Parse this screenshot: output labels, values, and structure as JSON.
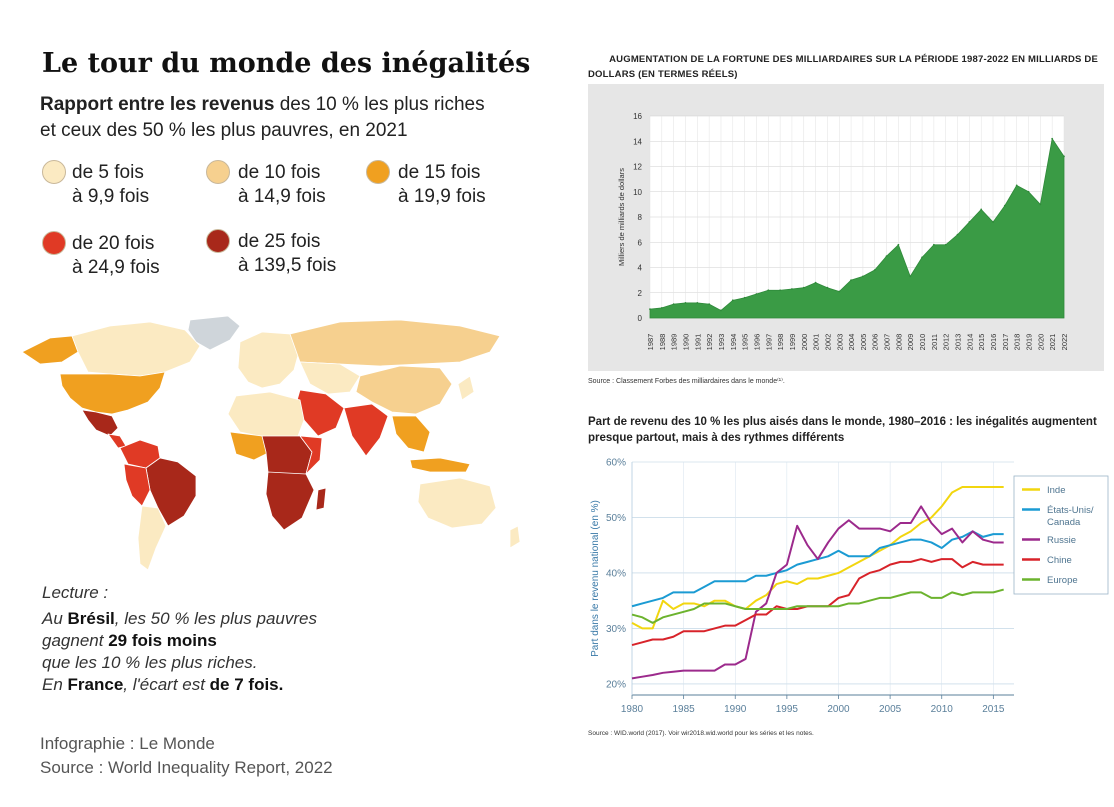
{
  "map_panel": {
    "title": "Le tour du monde des inégalités",
    "subtitle_bold": "Rapport entre les revenus",
    "subtitle_rest1": " des 10 % les plus riches",
    "subtitle_line2": "et ceux des 50 % les plus pauvres, en 2021",
    "legend": [
      {
        "line1": "de 5 fois",
        "line2": "à 9,9 fois",
        "color": "#fbeac2"
      },
      {
        "line1": "de 10 fois",
        "line2": "à 14,9 fois",
        "color": "#f6d08f"
      },
      {
        "line1": "de 15 fois",
        "line2": "à 19,9 fois",
        "color": "#f0a020"
      },
      {
        "line1": "de 20 fois",
        "line2": "à 24,9 fois",
        "color": "#e03a25"
      },
      {
        "line1": "de 25 fois",
        "line2": "à 139,5 fois",
        "color": "#a8281a"
      }
    ],
    "reading_label": "Lecture :",
    "reading_lines": {
      "l1a": "Au ",
      "l1b": "Brésil",
      "l1c": ", les 50 % les plus pauvres",
      "l2a": "gagnent ",
      "l2b": "29 fois moins",
      "l3": "que les 10 % les plus riches.",
      "l4a": "En ",
      "l4b": "France",
      "l4c": ", l'écart est ",
      "l4d": "de 7 fois."
    },
    "credit_infographic": "Infographie : Le Monde",
    "credit_source": "Source : World Inequality Report, 2022"
  },
  "billionaires_chart": {
    "title_line1": "AUGMENTATION DE LA FORTUNE DES MILLIARDAIRES SUR LA PÉRIODE 1987-2022 EN MILLIARDS DE",
    "title_line2": "DOLLARS (EN TERMES RÉELS)",
    "source": "Source : Classement Forbes des milliardaires dans le monde⁽¹⁾.",
    "color": "#3a9b45"
  },
  "share_chart": {
    "title_line1": "Part de revenu des 10 % les plus aisés dans le monde, 1980–2016 : les inégalités augmentent",
    "title_line2": "presque partout, mais à des rythmes différents",
    "source": "Source : WID.world (2017). Voir wir2018.wid.world pour les séries et les notes."
  },
  "chart_data": [
    {
      "type": "area",
      "title": "AUGMENTATION DE LA FORTUNE DES MILLIARDAIRES SUR LA PÉRIODE 1987-2022 EN MILLIARDS DE DOLLARS (EN TERMES RÉELS)",
      "xlabel": "",
      "ylabel": "Milliers de milliards de dollars",
      "ylim": [
        0,
        16
      ],
      "yticks": [
        0,
        2,
        4,
        6,
        8,
        10,
        12,
        14,
        16
      ],
      "grid": true,
      "x": [
        "1987",
        "1988",
        "1989",
        "1990",
        "1991",
        "1992",
        "1993",
        "1994",
        "1995",
        "1996",
        "1997",
        "1998",
        "1999",
        "2000",
        "2001",
        "2002",
        "2003",
        "2004",
        "2005",
        "2006",
        "2007",
        "2008",
        "2009",
        "2010",
        "2011",
        "2012",
        "2013",
        "2014",
        "2015",
        "2016",
        "2017",
        "2018",
        "2019",
        "2020",
        "2021",
        "2022"
      ],
      "values": [
        0.7,
        0.8,
        1.1,
        1.2,
        1.2,
        1.1,
        0.6,
        1.4,
        1.6,
        1.9,
        2.2,
        2.2,
        2.3,
        2.4,
        2.8,
        2.4,
        2.1,
        3.0,
        3.3,
        3.8,
        4.9,
        5.8,
        3.3,
        4.8,
        5.8,
        5.8,
        6.6,
        7.6,
        8.6,
        7.6,
        8.9,
        10.5,
        10.0,
        9.0,
        14.2,
        12.8
      ],
      "series_color": "#3a9b45"
    },
    {
      "type": "line",
      "title": "Part de revenu des 10 % les plus aisés dans le monde, 1980–2016 : les inégalités augmentent presque partout, mais à des rythmes différents",
      "xlabel": "",
      "ylabel": "Part dans le revenu national (en %)",
      "ylim": [
        18,
        60
      ],
      "xlim": [
        1980,
        2017
      ],
      "yticks": [
        20,
        30,
        40,
        50,
        60
      ],
      "ytick_labels": [
        "20%",
        "30%",
        "40%",
        "50%",
        "60%"
      ],
      "xticks": [
        1980,
        1985,
        1990,
        1995,
        2000,
        2005,
        2010,
        2015
      ],
      "grid": true,
      "legend_position": "right",
      "series": [
        {
          "name": "Inde",
          "color": "#f2d60f",
          "x": [
            1980,
            1981,
            1982,
            1983,
            1984,
            1985,
            1986,
            1987,
            1988,
            1989,
            1990,
            1991,
            1992,
            1993,
            1994,
            1995,
            1996,
            1997,
            1998,
            1999,
            2000,
            2001,
            2002,
            2003,
            2004,
            2005,
            2006,
            2007,
            2008,
            2009,
            2010,
            2011,
            2012,
            2013,
            2014,
            2015,
            2016
          ],
          "values": [
            31,
            30,
            30,
            35,
            33.5,
            34.5,
            34.5,
            34,
            35,
            35,
            34,
            33.5,
            35,
            36,
            38,
            38.5,
            38,
            39,
            39,
            39.5,
            40,
            41,
            42,
            43,
            44,
            45,
            46.5,
            47.5,
            49,
            50,
            52,
            54.5,
            55.5,
            55.5,
            55.5,
            55.5,
            55.5
          ]
        },
        {
          "name": "États-Unis/ Canada",
          "color": "#1b9bd3",
          "x": [
            1980,
            1981,
            1982,
            1983,
            1984,
            1985,
            1986,
            1987,
            1988,
            1989,
            1990,
            1991,
            1992,
            1993,
            1994,
            1995,
            1996,
            1997,
            1998,
            1999,
            2000,
            2001,
            2002,
            2003,
            2004,
            2005,
            2006,
            2007,
            2008,
            2009,
            2010,
            2011,
            2012,
            2013,
            2014,
            2015,
            2016
          ],
          "values": [
            34,
            34.5,
            35,
            35.5,
            36.5,
            36.5,
            36.5,
            37.5,
            38.5,
            38.5,
            38.5,
            38.5,
            39.5,
            39.5,
            40,
            40.5,
            41.5,
            42,
            42.5,
            43,
            44,
            43,
            43,
            43,
            44.5,
            45,
            45.5,
            46,
            46,
            45.5,
            44.5,
            46,
            46.5,
            47.5,
            46.5,
            47,
            47
          ]
        },
        {
          "name": "Russie",
          "color": "#9c2a8c",
          "x": [
            1980,
            1981,
            1982,
            1983,
            1984,
            1985,
            1986,
            1987,
            1988,
            1989,
            1990,
            1991,
            1992,
            1993,
            1994,
            1995,
            1996,
            1997,
            1998,
            1999,
            2000,
            2001,
            2002,
            2003,
            2004,
            2005,
            2006,
            2007,
            2008,
            2009,
            2010,
            2011,
            2012,
            2013,
            2014,
            2015,
            2016
          ],
          "values": [
            21,
            21.3,
            21.6,
            22,
            22.2,
            22.4,
            22.4,
            22.4,
            22.4,
            23.5,
            23.5,
            24.5,
            33,
            34.5,
            40,
            41.5,
            48.5,
            45,
            42.5,
            45.5,
            48,
            49.5,
            48,
            48,
            48,
            47.5,
            49,
            49,
            52,
            49,
            47,
            48,
            45.5,
            47.5,
            46,
            45.5,
            45.5
          ]
        },
        {
          "name": "Chine",
          "color": "#d8232a",
          "x": [
            1980,
            1981,
            1982,
            1983,
            1984,
            1985,
            1986,
            1987,
            1988,
            1989,
            1990,
            1991,
            1992,
            1993,
            1994,
            1995,
            1996,
            1997,
            1998,
            1999,
            2000,
            2001,
            2002,
            2003,
            2004,
            2005,
            2006,
            2007,
            2008,
            2009,
            2010,
            2011,
            2012,
            2013,
            2014,
            2015,
            2016
          ],
          "values": [
            27,
            27.5,
            28,
            28,
            28.5,
            29.5,
            29.5,
            29.5,
            30,
            30.5,
            30.5,
            31.5,
            32.5,
            32.5,
            34,
            33.5,
            33.5,
            34,
            34,
            34,
            35.5,
            36,
            39,
            40,
            40.5,
            41.5,
            42,
            42,
            42.5,
            42,
            42.5,
            42.5,
            41,
            42,
            41.5,
            41.5,
            41.5
          ]
        },
        {
          "name": "Europe",
          "color": "#6cb32e",
          "x": [
            1980,
            1981,
            1982,
            1983,
            1984,
            1985,
            1986,
            1987,
            1988,
            1989,
            1990,
            1991,
            1992,
            1993,
            1994,
            1995,
            1996,
            1997,
            1998,
            1999,
            2000,
            2001,
            2002,
            2003,
            2004,
            2005,
            2006,
            2007,
            2008,
            2009,
            2010,
            2011,
            2012,
            2013,
            2014,
            2015,
            2016
          ],
          "values": [
            32.5,
            32,
            31,
            32,
            32.5,
            33,
            33.5,
            34.5,
            34.5,
            34.5,
            34,
            33.5,
            33.5,
            33.5,
            33.5,
            33.5,
            34,
            34,
            34,
            34,
            34,
            34.5,
            34.5,
            35,
            35.5,
            35.5,
            36,
            36.5,
            36.5,
            35.5,
            35.5,
            36.5,
            36,
            36.5,
            36.5,
            36.5,
            37
          ]
        }
      ]
    }
  ]
}
